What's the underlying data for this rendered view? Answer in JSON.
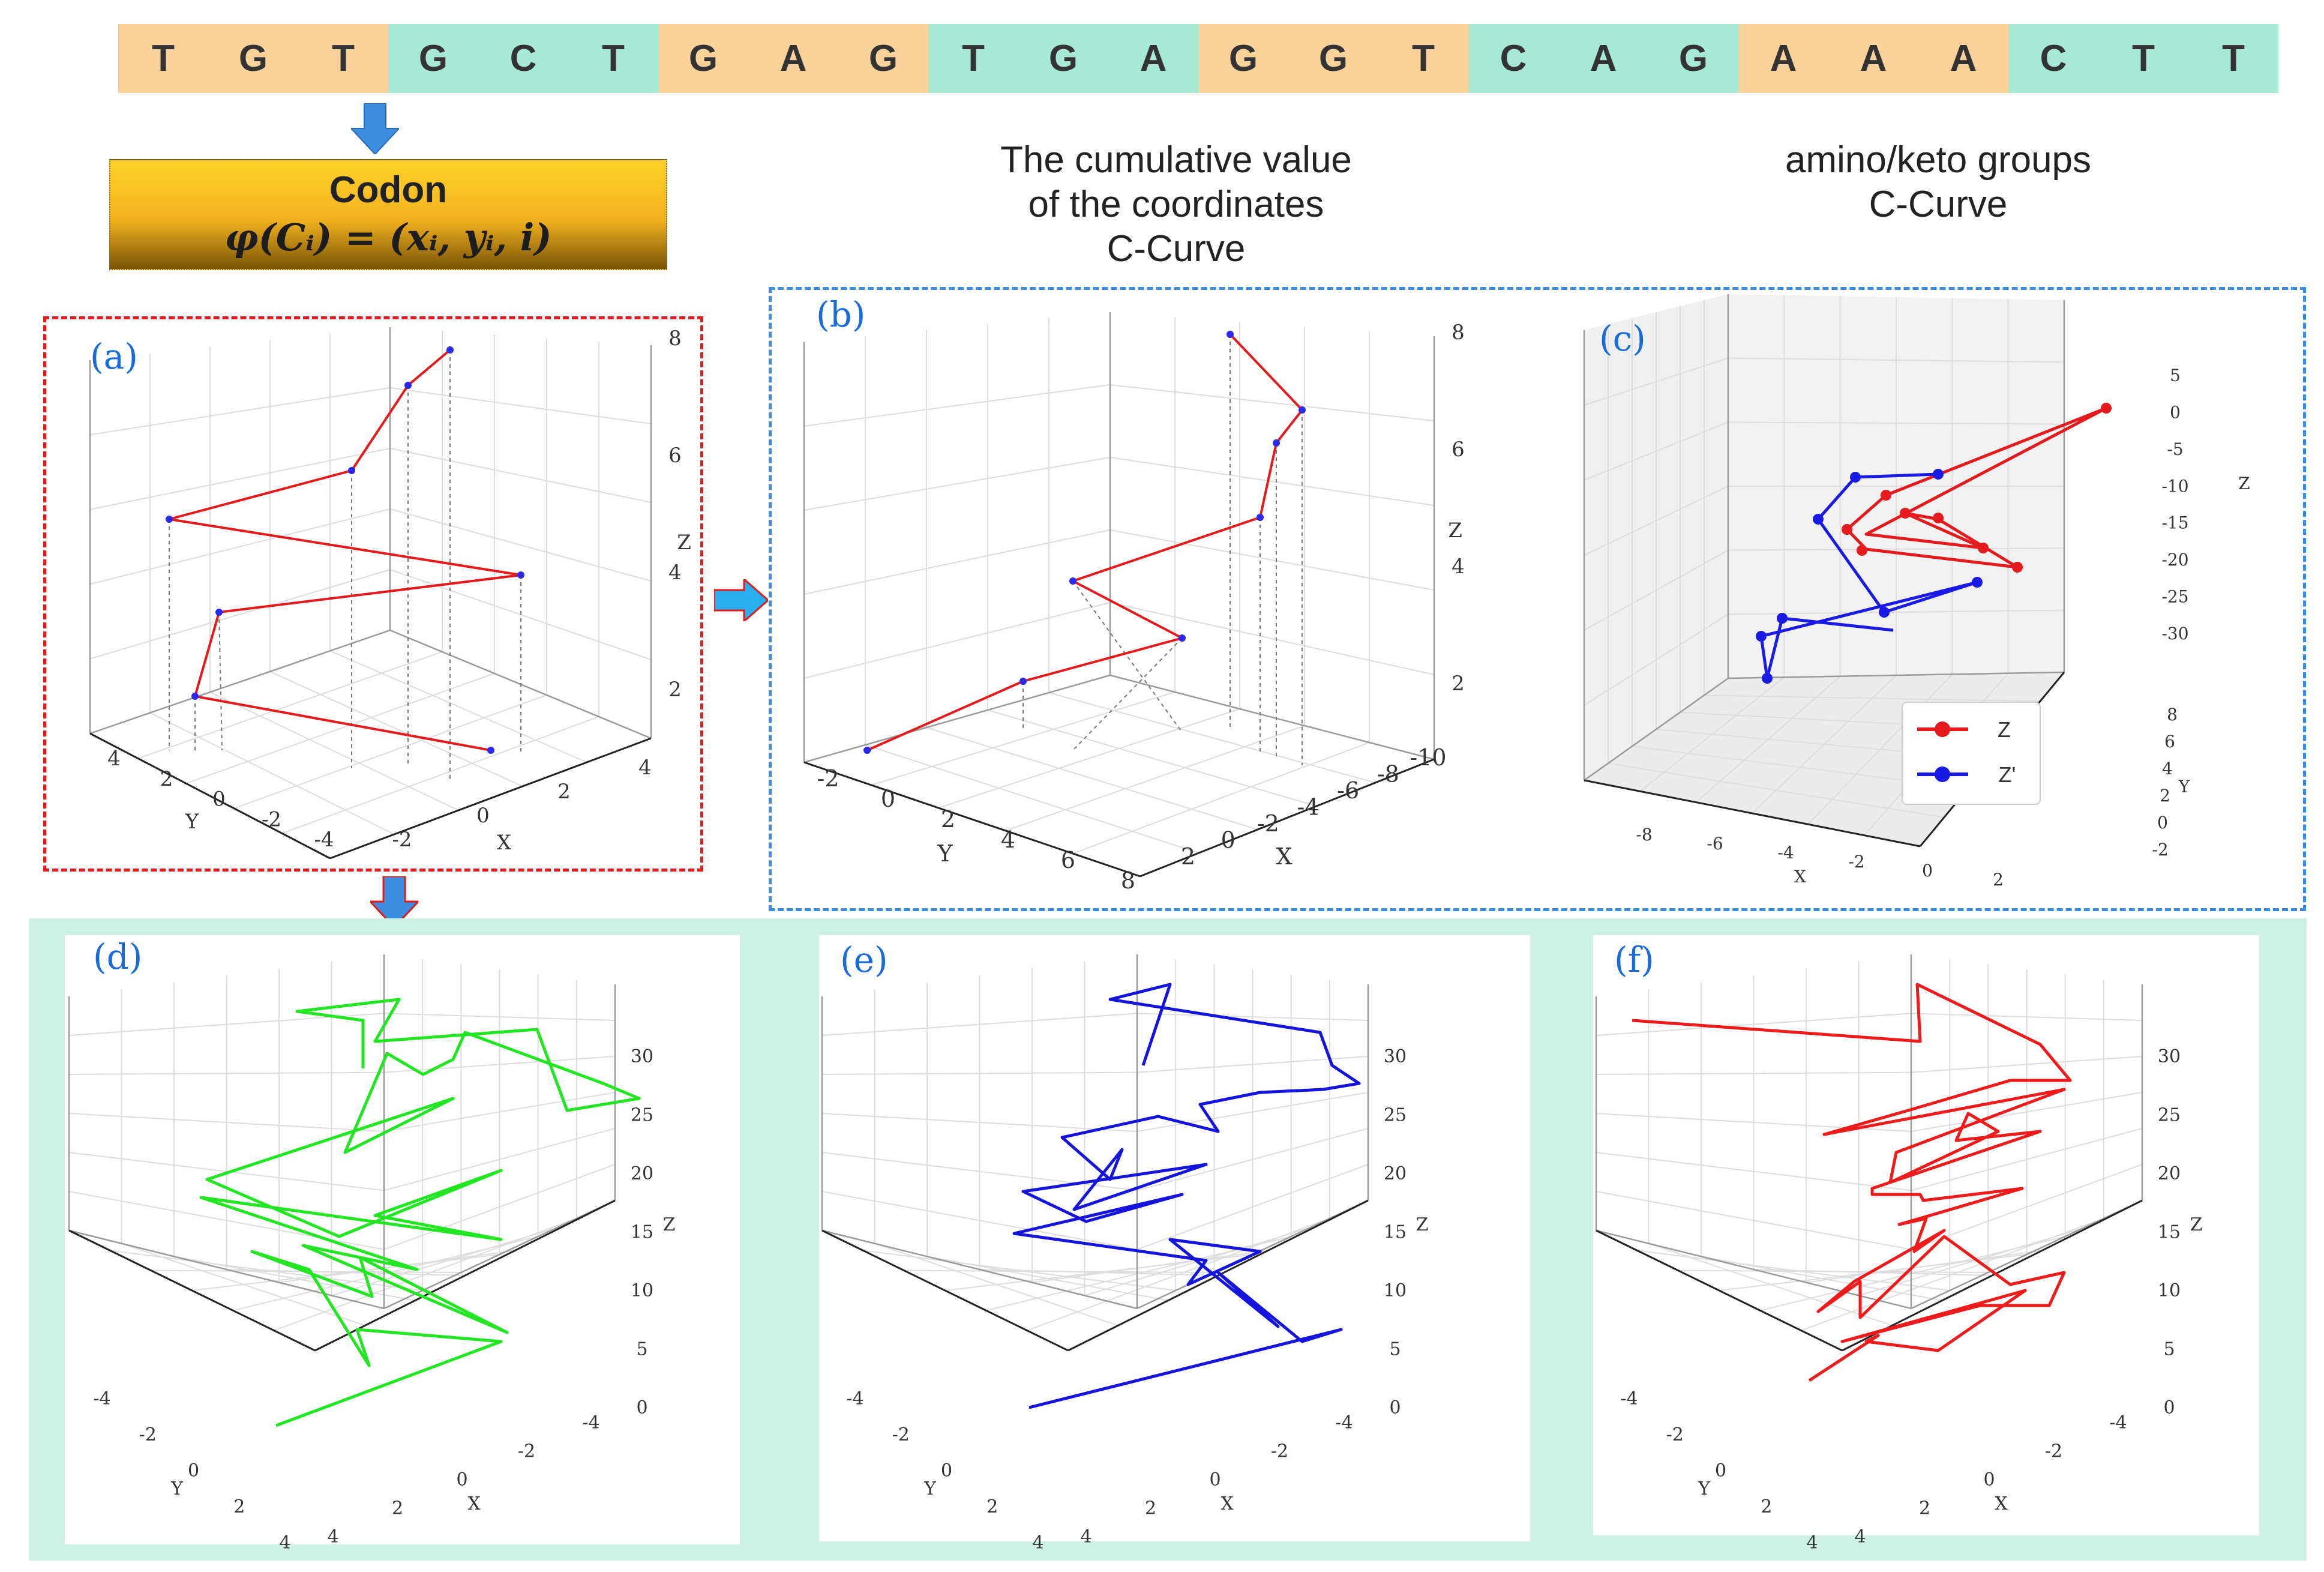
{
  "sequence": [
    "T",
    "G",
    "T",
    "G",
    "C",
    "T",
    "G",
    "A",
    "G",
    "T",
    "G",
    "A",
    "G",
    "G",
    "T",
    "C",
    "A",
    "G",
    "A",
    "A",
    "A",
    "C",
    "T",
    "T"
  ],
  "sequence_colors": {
    "orange": "#fad29a",
    "green": "#a8e8d6"
  },
  "codon": {
    "title": "Codon",
    "formula": "φ(Cᵢ) = (xᵢ, yᵢ, i)"
  },
  "headings": {
    "cumulative": [
      "The cumulative value",
      "of the coordinates",
      "C-Curve"
    ],
    "amino": [
      "amino/keto groups",
      "C-Curve"
    ]
  },
  "panels": {
    "a": {
      "label": "(a)",
      "color": "#e41a1c",
      "z_ticks": [
        "2",
        "4",
        "6",
        "8"
      ],
      "y_ticks": [
        "4",
        "2",
        "0",
        "-2",
        "-4"
      ],
      "x_ticks": [
        "-2",
        "0",
        "2",
        "4"
      ],
      "z_label": "Z",
      "y_label": "Y",
      "x_label": "X"
    },
    "b": {
      "label": "(b)",
      "color": "#e41a1c",
      "z_ticks": [
        "2",
        "4",
        "6",
        "8"
      ],
      "y_ticks": [
        "-2",
        "0",
        "2",
        "4",
        "6",
        "8"
      ],
      "x_ticks": [
        "2",
        "0",
        "-2",
        "-4",
        "-6",
        "-8",
        "-10"
      ],
      "z_label": "Z",
      "y_label": "Y",
      "x_label": "X"
    },
    "c": {
      "label": "(c)",
      "z_ticks": [
        "5",
        "0",
        "-5",
        "-10",
        "-15",
        "-20",
        "-25",
        "-30"
      ],
      "y_ticks": [
        "8",
        "6",
        "4",
        "2",
        "0",
        "-2"
      ],
      "x_ticks": [
        "-8",
        "-6",
        "-4",
        "-2",
        "0",
        "2"
      ],
      "z_label": "Z",
      "y_label": "Y",
      "x_label": "X",
      "legend": [
        {
          "name": "Z",
          "color": "#e41a1c"
        },
        {
          "name": "Z'",
          "color": "#1a1ae6"
        }
      ]
    },
    "d": {
      "label": "(d)",
      "color": "#22e622",
      "z_ticks": [
        "0",
        "5",
        "10",
        "15",
        "20",
        "25",
        "30"
      ],
      "y_ticks": [
        "-4",
        "-2",
        "0",
        "2",
        "4"
      ],
      "x_ticks": [
        "4",
        "2",
        "0",
        "-2",
        "-4"
      ],
      "z_label": "Z",
      "y_label": "Y",
      "x_label": "X"
    },
    "e": {
      "label": "(e)",
      "color": "#1414dc",
      "z_ticks": [
        "0",
        "5",
        "10",
        "15",
        "20",
        "25",
        "30"
      ],
      "y_ticks": [
        "-4",
        "-2",
        "0",
        "2",
        "4"
      ],
      "x_ticks": [
        "4",
        "2",
        "0",
        "-2",
        "-4"
      ],
      "z_label": "Z",
      "y_label": "Y",
      "x_label": "X"
    },
    "f": {
      "label": "(f)",
      "color": "#ef1a1a",
      "z_ticks": [
        "0",
        "5",
        "10",
        "15",
        "20",
        "25",
        "30"
      ],
      "y_ticks": [
        "-4",
        "-2",
        "0",
        "2",
        "4"
      ],
      "x_ticks": [
        "4",
        "2",
        "0",
        "-2",
        "-4"
      ],
      "z_label": "Z",
      "y_label": "Y",
      "x_label": "X"
    }
  },
  "arrow_color": "#3b8ee0"
}
